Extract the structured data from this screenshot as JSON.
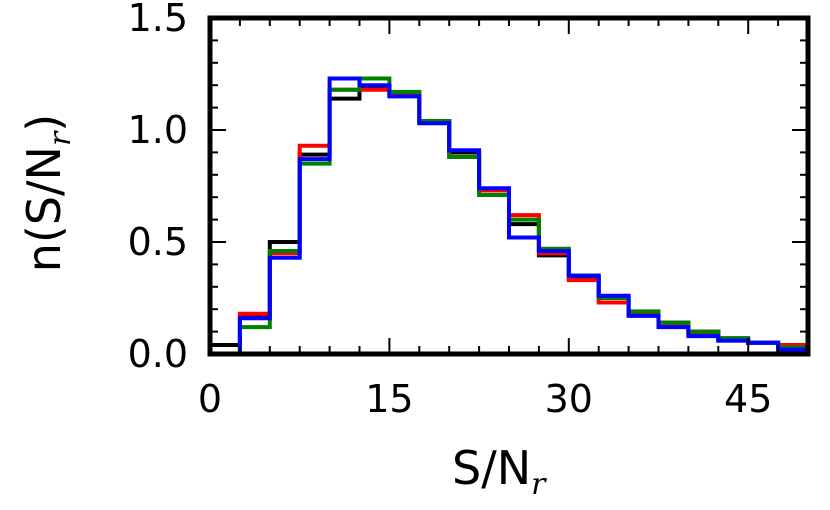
{
  "chart_data": {
    "type": "line",
    "xlabel": "S/N",
    "xlabel_subscript": "r",
    "ylabel": "n(S/N",
    "ylabel_subscript": "r",
    "ylabel_suffix": ")",
    "xlim": [
      0,
      50
    ],
    "ylim": [
      0,
      1.5
    ],
    "x_ticks": [
      0,
      15,
      30,
      45
    ],
    "y_ticks": [
      0.0,
      0.5,
      1.0,
      1.5
    ],
    "x_tick_labels": [
      "0",
      "15",
      "30",
      "45"
    ],
    "y_tick_labels": [
      "0.0",
      "0.5",
      "1.0",
      "1.5"
    ],
    "x_minor_step": 2.5,
    "y_minor_step": 0.1,
    "grid": false,
    "bin_edges": [
      0,
      2.5,
      5,
      7.5,
      10,
      12.5,
      15,
      17.5,
      20,
      22.5,
      25,
      27.5,
      30,
      32.5,
      35,
      37.5,
      40,
      42.5,
      45,
      47.5,
      50
    ],
    "series": [
      {
        "color": "#000000",
        "values": [
          0.04,
          0.17,
          0.5,
          0.89,
          1.14,
          1.19,
          1.16,
          1.04,
          0.9,
          0.73,
          0.58,
          0.44,
          0.34,
          0.25,
          0.18,
          0.14,
          0.1,
          0.07,
          0.05,
          0.03
        ]
      },
      {
        "color": "#ff0000",
        "values": [
          0.0,
          0.18,
          0.45,
          0.93,
          1.18,
          1.18,
          1.16,
          1.04,
          0.88,
          0.73,
          0.62,
          0.45,
          0.33,
          0.23,
          0.18,
          0.13,
          0.09,
          0.06,
          0.05,
          0.04
        ]
      },
      {
        "color": "#008000",
        "values": [
          0.0,
          0.12,
          0.46,
          0.85,
          1.18,
          1.23,
          1.17,
          1.04,
          0.88,
          0.71,
          0.6,
          0.47,
          0.35,
          0.25,
          0.19,
          0.14,
          0.1,
          0.07,
          0.05,
          0.03
        ]
      },
      {
        "color": "#0000ff",
        "values": [
          0.0,
          0.16,
          0.43,
          0.87,
          1.23,
          1.2,
          1.15,
          1.03,
          0.91,
          0.74,
          0.52,
          0.46,
          0.35,
          0.26,
          0.17,
          0.12,
          0.08,
          0.06,
          0.05,
          0.02
        ]
      }
    ]
  }
}
